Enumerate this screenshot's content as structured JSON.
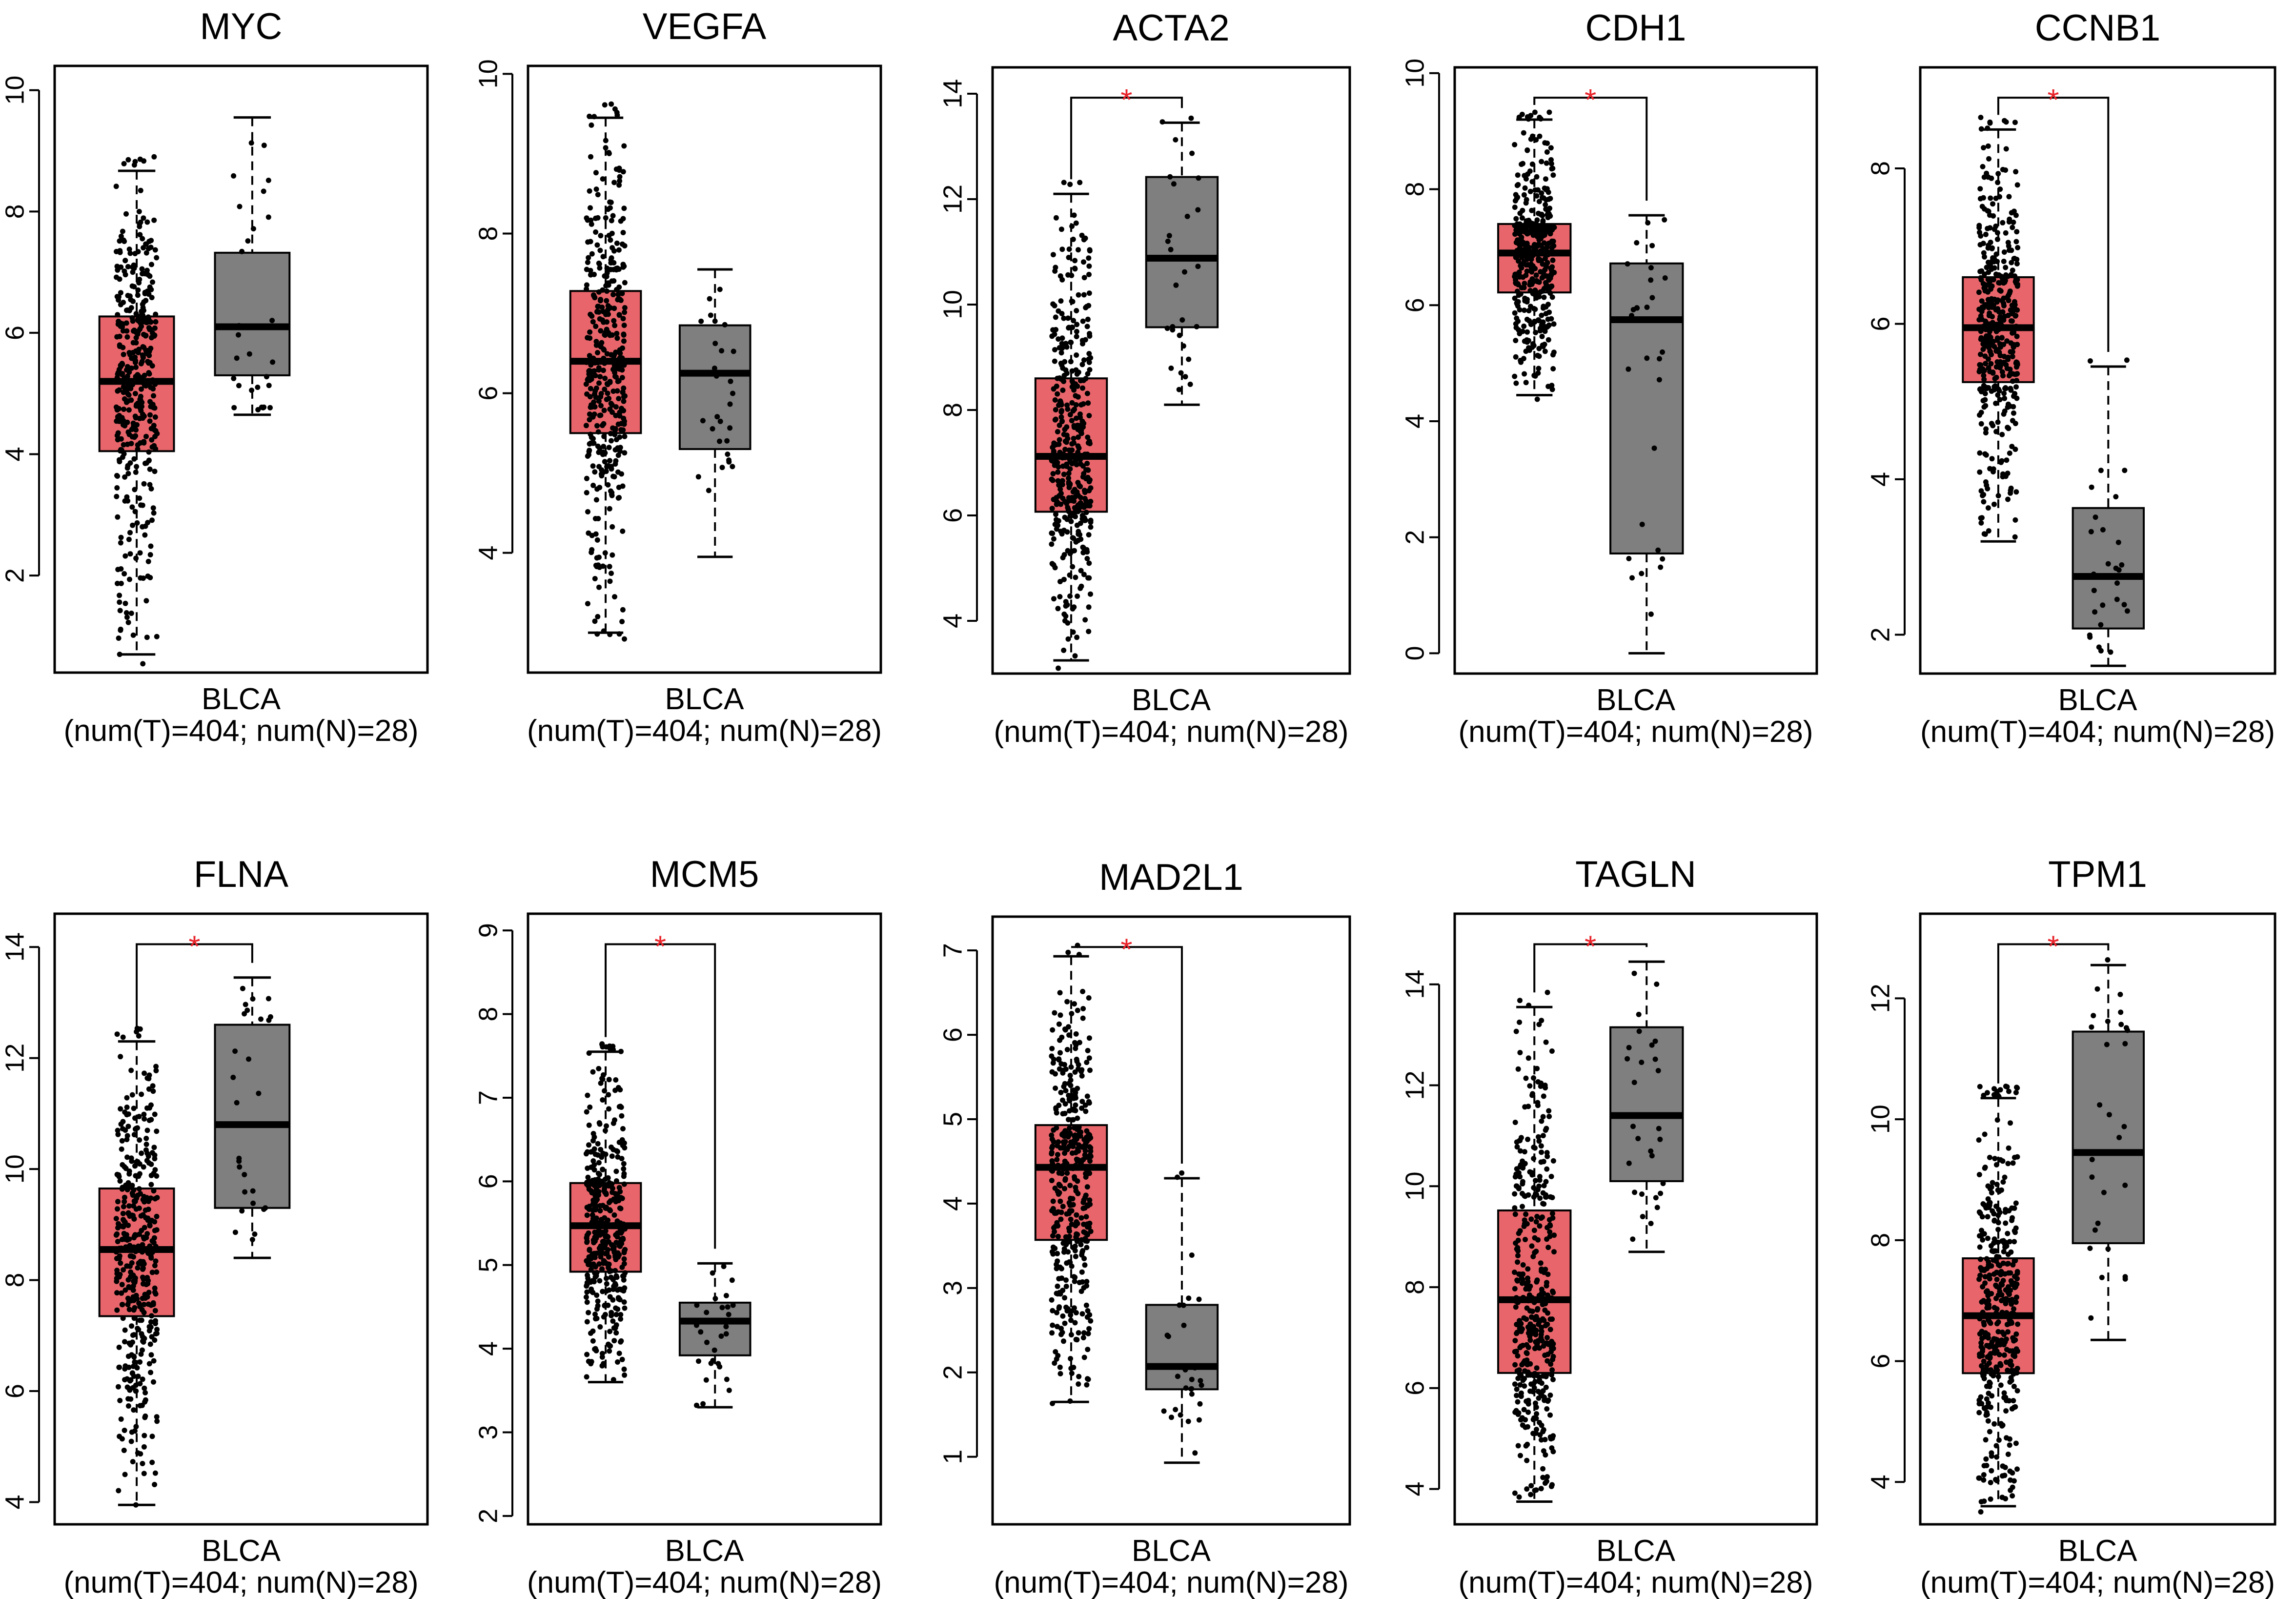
{
  "chart_data": [
    {
      "type": "boxplot",
      "title": "MYC",
      "ylim": [
        0.4,
        10.4
      ],
      "ticks": [
        2,
        4,
        6,
        8,
        10
      ],
      "xlabel": "BLCA",
      "sublabel": "(num(T)=404; num(N)=28)",
      "significant": false,
      "series": [
        {
          "name": "T",
          "color": "#E8666B",
          "min": 0.7,
          "q1": 4.05,
          "median": 5.2,
          "q3": 6.27,
          "max": 8.67
        },
        {
          "name": "N",
          "color": "#7F7F7F",
          "min": 4.65,
          "q1": 5.3,
          "median": 6.1,
          "q3": 7.32,
          "max": 9.55
        }
      ]
    },
    {
      "type": "boxplot",
      "title": "VEGFA",
      "ylim": [
        2.5,
        10.1
      ],
      "ticks": [
        4,
        6,
        8,
        10
      ],
      "xlabel": "BLCA",
      "sublabel": "(num(T)=404; num(N)=28)",
      "significant": false,
      "series": [
        {
          "name": "T",
          "color": "#E8666B",
          "min": 3.0,
          "q1": 5.5,
          "median": 6.4,
          "q3": 7.28,
          "max": 9.45
        },
        {
          "name": "N",
          "color": "#7F7F7F",
          "min": 3.95,
          "q1": 5.3,
          "median": 6.25,
          "q3": 6.85,
          "max": 7.55
        }
      ]
    },
    {
      "type": "boxplot",
      "title": "ACTA2",
      "ylim": [
        3.0,
        14.5
      ],
      "ticks": [
        4,
        6,
        8,
        10,
        12,
        14
      ],
      "xlabel": "BLCA",
      "sublabel": "(num(T)=404; num(N)=28)",
      "significant": true,
      "series": [
        {
          "name": "T",
          "color": "#E8666B",
          "min": 3.25,
          "q1": 6.07,
          "median": 7.12,
          "q3": 8.6,
          "max": 12.1
        },
        {
          "name": "N",
          "color": "#7F7F7F",
          "min": 8.1,
          "q1": 9.57,
          "median": 10.88,
          "q3": 12.42,
          "max": 13.45
        }
      ]
    },
    {
      "type": "boxplot",
      "title": "CDH1",
      "ylim": [
        -0.35,
        10.1
      ],
      "ticks": [
        0,
        2,
        4,
        6,
        8,
        10
      ],
      "xlabel": "BLCA",
      "sublabel": "(num(T)=404; num(N)=28)",
      "significant": true,
      "series": [
        {
          "name": "T",
          "color": "#E8666B",
          "min": 4.45,
          "q1": 6.22,
          "median": 6.9,
          "q3": 7.4,
          "max": 9.2
        },
        {
          "name": "N",
          "color": "#7F7F7F",
          "min": 0.0,
          "q1": 1.72,
          "median": 5.75,
          "q3": 6.72,
          "max": 7.55
        }
      ]
    },
    {
      "type": "boxplot",
      "title": "CCNB1",
      "ylim": [
        1.5,
        9.3
      ],
      "ticks": [
        2,
        4,
        6,
        8
      ],
      "xlabel": "BLCA",
      "sublabel": "(num(T)=404; num(N)=28)",
      "significant": true,
      "series": [
        {
          "name": "T",
          "color": "#E8666B",
          "min": 3.2,
          "q1": 5.25,
          "median": 5.95,
          "q3": 6.6,
          "max": 8.5
        },
        {
          "name": "N",
          "color": "#7F7F7F",
          "min": 1.6,
          "q1": 2.08,
          "median": 2.75,
          "q3": 3.63,
          "max": 5.45
        }
      ]
    },
    {
      "type": "boxplot",
      "title": "FLNA",
      "ylim": [
        3.6,
        14.6
      ],
      "ticks": [
        4,
        6,
        8,
        10,
        12,
        14
      ],
      "xlabel": "BLCA",
      "sublabel": "(num(T)=404; num(N)=28)",
      "significant": true,
      "series": [
        {
          "name": "T",
          "color": "#E8666B",
          "min": 3.95,
          "q1": 7.35,
          "median": 8.55,
          "q3": 9.65,
          "max": 12.3
        },
        {
          "name": "N",
          "color": "#7F7F7F",
          "min": 8.4,
          "q1": 9.3,
          "median": 10.8,
          "q3": 12.6,
          "max": 13.45
        }
      ]
    },
    {
      "type": "boxplot",
      "title": "MCM5",
      "ylim": [
        1.9,
        9.2
      ],
      "ticks": [
        2,
        3,
        4,
        5,
        6,
        7,
        8,
        9
      ],
      "xlabel": "BLCA",
      "sublabel": "(num(T)=404; num(N)=28)",
      "significant": true,
      "series": [
        {
          "name": "T",
          "color": "#E8666B",
          "min": 3.6,
          "q1": 4.92,
          "median": 5.47,
          "q3": 5.98,
          "max": 7.55
        },
        {
          "name": "N",
          "color": "#7F7F7F",
          "min": 3.3,
          "q1": 3.92,
          "median": 4.33,
          "q3": 4.55,
          "max": 5.02
        }
      ]
    },
    {
      "type": "boxplot",
      "title": "MAD2L1",
      "ylim": [
        0.2,
        7.4
      ],
      "ticks": [
        1,
        2,
        3,
        4,
        5,
        6,
        7
      ],
      "xlabel": "BLCA",
      "sublabel": "(num(T)=404; num(N)=28)",
      "significant": true,
      "series": [
        {
          "name": "T",
          "color": "#E8666B",
          "min": 1.65,
          "q1": 3.57,
          "median": 4.43,
          "q3": 4.93,
          "max": 6.93
        },
        {
          "name": "N",
          "color": "#7F7F7F",
          "min": 0.93,
          "q1": 1.8,
          "median": 2.07,
          "q3": 2.8,
          "max": 4.3
        }
      ]
    },
    {
      "type": "boxplot",
      "title": "TAGLN",
      "ylim": [
        3.3,
        15.4
      ],
      "ticks": [
        4,
        6,
        8,
        10,
        12,
        14
      ],
      "xlabel": "BLCA",
      "sublabel": "(num(T)=404; num(N)=28)",
      "significant": true,
      "series": [
        {
          "name": "T",
          "color": "#E8666B",
          "min": 3.75,
          "q1": 6.3,
          "median": 7.75,
          "q3": 9.52,
          "max": 13.55
        },
        {
          "name": "N",
          "color": "#7F7F7F",
          "min": 8.7,
          "q1": 10.1,
          "median": 11.4,
          "q3": 13.15,
          "max": 14.45
        }
      ]
    },
    {
      "type": "boxplot",
      "title": "TPM1",
      "ylim": [
        3.3,
        13.4
      ],
      "ticks": [
        4,
        6,
        8,
        10,
        12
      ],
      "xlabel": "BLCA",
      "sublabel": "(num(T)=404; num(N)=28)",
      "significant": true,
      "series": [
        {
          "name": "T",
          "color": "#E8666B",
          "min": 3.6,
          "q1": 5.8,
          "median": 6.75,
          "q3": 7.7,
          "max": 10.35
        },
        {
          "name": "N",
          "color": "#7F7F7F",
          "min": 6.35,
          "q1": 7.95,
          "median": 9.45,
          "q3": 11.45,
          "max": 12.55
        }
      ]
    }
  ],
  "significance_marker": "*",
  "colors": {
    "tumor": "#E8666B",
    "normal": "#7F7F7F",
    "star": "#E8232A",
    "ink": "#000000"
  }
}
